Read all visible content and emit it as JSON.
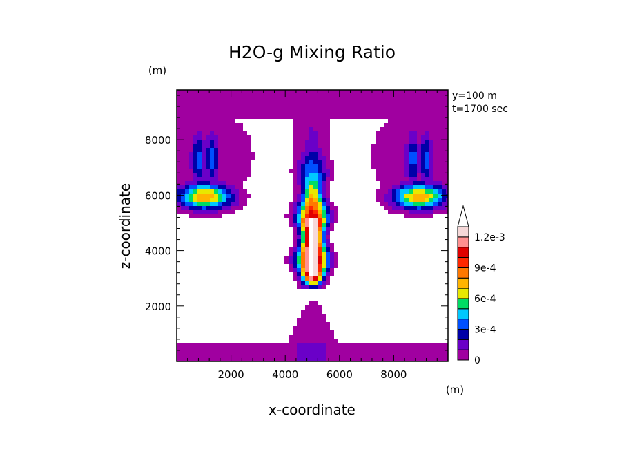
{
  "chart_data": {
    "type": "contour",
    "title": "H2O-g Mixing Ratio",
    "xlabel": "x-coordinate",
    "ylabel": "z-coordinate",
    "x_unit": "(m)",
    "y_unit": "(m)",
    "annotations": [
      "y=100 m",
      "t=1700 sec"
    ],
    "xlim": [
      0,
      10000
    ],
    "ylim": [
      0,
      9800
    ],
    "x_ticks": [
      2000,
      4000,
      6000,
      8000
    ],
    "x_tick_labels": [
      "2000",
      "4000",
      "6000",
      "8000"
    ],
    "y_ticks": [
      2000,
      4000,
      6000,
      8000
    ],
    "y_tick_labels": [
      "2000",
      "4000",
      "6000",
      "8000"
    ],
    "colorbar": {
      "levels": [
        0,
        0.0001,
        0.0002,
        0.0003,
        0.0004,
        0.0005,
        0.0006,
        0.0007,
        0.0008,
        0.0009,
        0.001,
        0.0011,
        0.0012,
        0.0013
      ],
      "colors": [
        "#a000a0",
        "#6a00c8",
        "#0000a8",
        "#0050ff",
        "#00c8ff",
        "#00dc64",
        "#e8e800",
        "#ffb400",
        "#ff7800",
        "#ff2800",
        "#e00000",
        "#ff9090",
        "#f6d8d8",
        "#ffffff"
      ],
      "tick_labels": [
        "0",
        "3e-4",
        "6e-4",
        "9e-4",
        "1.2e-3"
      ],
      "tick_values": [
        0,
        0.0003,
        0.0006,
        0.0009,
        0.0012
      ]
    },
    "features": [
      {
        "name": "central-plume",
        "x": 5000,
        "z_range": [
          2500,
          8500
        ],
        "max_value": 0.0013
      },
      {
        "name": "left-cloud",
        "x_range": [
          0,
          3400
        ],
        "z_range": [
          5400,
          9800
        ],
        "max_value": 0.0008
      },
      {
        "name": "right-cloud",
        "x_range": [
          6600,
          10000
        ],
        "z_range": [
          5400,
          9800
        ],
        "max_value": 0.0008
      },
      {
        "name": "surface-layer",
        "z_range": [
          0,
          600
        ],
        "max_value": 0.0001
      },
      {
        "name": "central-mound",
        "x_range": [
          3600,
          6400
        ],
        "z_range": [
          0,
          2150
        ],
        "max_value": 0.0002
      }
    ]
  }
}
